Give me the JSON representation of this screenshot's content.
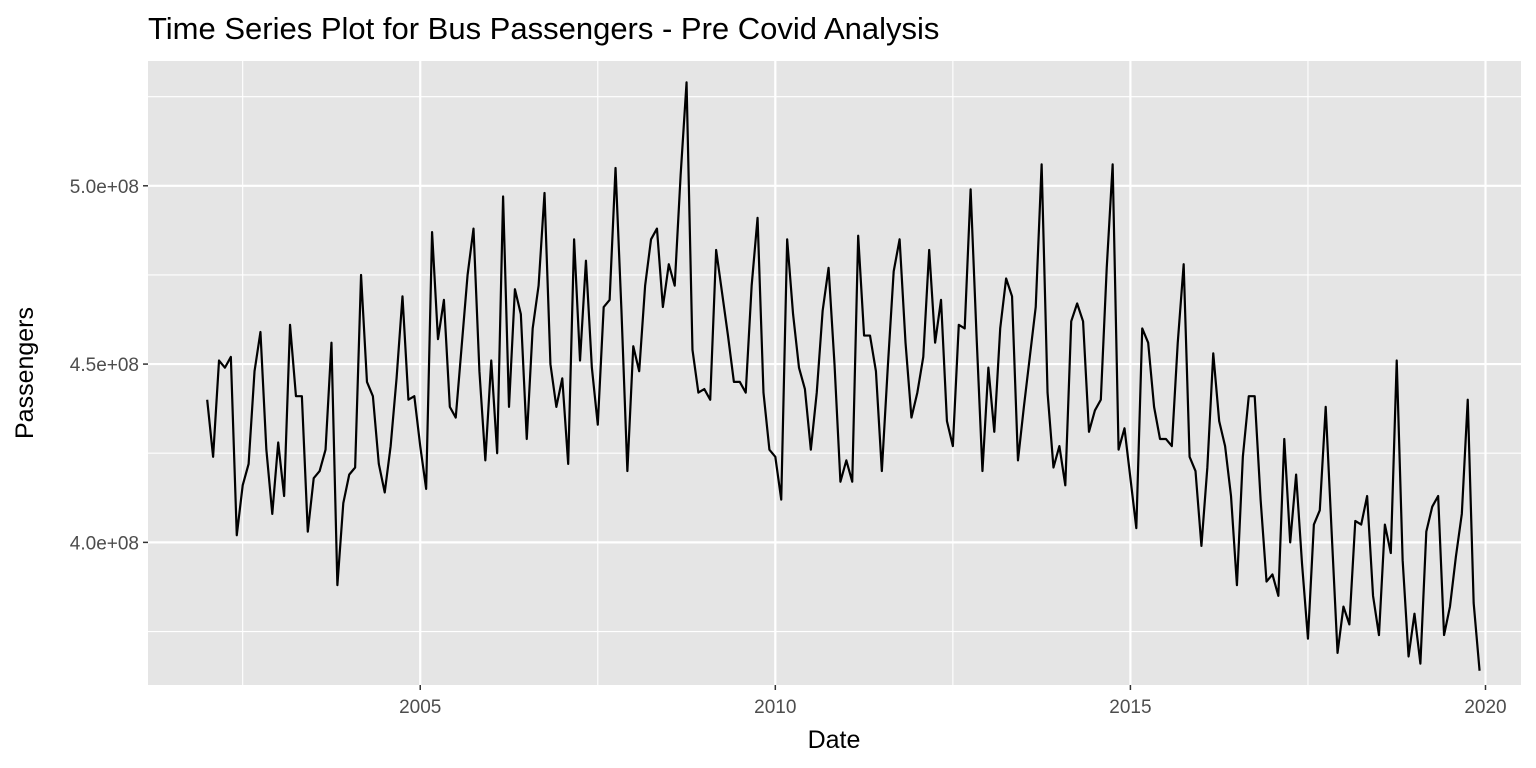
{
  "chart_data": {
    "type": "line",
    "title": "Time Series Plot for Bus Passengers - Pre Covid Analysis",
    "xlabel": "Date",
    "ylabel": "Passengers",
    "x_ticks": [
      "2005",
      "2010",
      "2015",
      "2020"
    ],
    "y_ticks": [
      "4.0e+08",
      "4.5e+08",
      "5.0e+08"
    ],
    "xlim": [
      "2001-03",
      "2020-07"
    ],
    "ylim": [
      360000000,
      535000000
    ],
    "grid": true,
    "colors": {
      "panel": "#e5e5e5",
      "grid": "#ffffff",
      "line": "#000000",
      "tick_label": "#4d4d4d"
    },
    "series": [
      {
        "x": [
          "2002-01",
          "2002-02",
          "2002-03",
          "2002-04",
          "2002-05",
          "2002-06",
          "2002-07",
          "2002-08",
          "2002-09",
          "2002-10",
          "2002-11",
          "2002-12",
          "2003-01",
          "2003-02",
          "2003-03",
          "2003-04",
          "2003-05",
          "2003-06",
          "2003-07",
          "2003-08",
          "2003-09",
          "2003-10",
          "2003-11",
          "2003-12",
          "2004-01",
          "2004-02",
          "2004-03",
          "2004-04",
          "2004-05",
          "2004-06",
          "2004-07",
          "2004-08",
          "2004-09",
          "2004-10",
          "2004-11",
          "2004-12",
          "2005-01",
          "2005-02",
          "2005-03",
          "2005-04",
          "2005-05",
          "2005-06",
          "2005-07",
          "2005-08",
          "2005-09",
          "2005-10",
          "2005-11",
          "2005-12",
          "2006-01",
          "2006-02",
          "2006-03",
          "2006-04",
          "2006-05",
          "2006-06",
          "2006-07",
          "2006-08",
          "2006-09",
          "2006-10",
          "2006-11",
          "2006-12",
          "2007-01",
          "2007-02",
          "2007-03",
          "2007-04",
          "2007-05",
          "2007-06",
          "2007-07",
          "2007-08",
          "2007-09",
          "2007-10",
          "2007-11",
          "2007-12",
          "2008-01",
          "2008-02",
          "2008-03",
          "2008-04",
          "2008-05",
          "2008-06",
          "2008-07",
          "2008-08",
          "2008-09",
          "2008-10",
          "2008-11",
          "2008-12",
          "2009-01",
          "2009-02",
          "2009-03",
          "2009-04",
          "2009-05",
          "2009-06",
          "2009-07",
          "2009-08",
          "2009-09",
          "2009-10",
          "2009-11",
          "2009-12",
          "2010-01",
          "2010-02",
          "2010-03",
          "2010-04",
          "2010-05",
          "2010-06",
          "2010-07",
          "2010-08",
          "2010-09",
          "2010-10",
          "2010-11",
          "2010-12",
          "2011-01",
          "2011-02",
          "2011-03",
          "2011-04",
          "2011-05",
          "2011-06",
          "2011-07",
          "2011-08",
          "2011-09",
          "2011-10",
          "2011-11",
          "2011-12",
          "2012-01",
          "2012-02",
          "2012-03",
          "2012-04",
          "2012-05",
          "2012-06",
          "2012-07",
          "2012-08",
          "2012-09",
          "2012-10",
          "2012-11",
          "2012-12",
          "2013-01",
          "2013-02",
          "2013-03",
          "2013-04",
          "2013-05",
          "2013-06",
          "2013-07",
          "2013-08",
          "2013-09",
          "2013-10",
          "2013-11",
          "2013-12",
          "2014-01",
          "2014-02",
          "2014-03",
          "2014-04",
          "2014-05",
          "2014-06",
          "2014-07",
          "2014-08",
          "2014-09",
          "2014-10",
          "2014-11",
          "2014-12",
          "2015-01",
          "2015-02",
          "2015-03",
          "2015-04",
          "2015-05",
          "2015-06",
          "2015-07",
          "2015-08",
          "2015-09",
          "2015-10",
          "2015-11",
          "2015-12",
          "2016-01",
          "2016-02",
          "2016-03",
          "2016-04",
          "2016-05",
          "2016-06",
          "2016-07",
          "2016-08",
          "2016-09",
          "2016-10",
          "2016-11",
          "2016-12",
          "2017-01",
          "2017-02",
          "2017-03",
          "2017-04",
          "2017-05",
          "2017-06",
          "2017-07",
          "2017-08",
          "2017-09",
          "2017-10",
          "2017-11",
          "2017-12",
          "2018-01",
          "2018-02",
          "2018-03",
          "2018-04",
          "2018-05",
          "2018-06",
          "2018-07",
          "2018-08",
          "2018-09",
          "2018-10",
          "2018-11",
          "2018-12",
          "2019-01",
          "2019-02",
          "2019-03",
          "2019-04",
          "2019-05",
          "2019-06",
          "2019-07",
          "2019-08",
          "2019-09",
          "2019-10",
          "2019-11",
          "2019-12"
        ],
        "y": [
          440000000,
          424000000,
          451000000,
          449000000,
          452000000,
          402000000,
          416000000,
          422000000,
          448000000,
          459000000,
          426000000,
          408000000,
          428000000,
          413000000,
          461000000,
          441000000,
          441000000,
          403000000,
          418000000,
          420000000,
          426000000,
          456000000,
          388000000,
          411000000,
          419000000,
          421000000,
          475000000,
          445000000,
          441000000,
          422000000,
          414000000,
          427000000,
          446000000,
          469000000,
          440000000,
          441000000,
          427000000,
          415000000,
          487000000,
          457000000,
          468000000,
          438000000,
          435000000,
          455000000,
          475000000,
          488000000,
          448000000,
          423000000,
          451000000,
          425000000,
          497000000,
          438000000,
          471000000,
          464000000,
          429000000,
          460000000,
          472000000,
          498000000,
          450000000,
          438000000,
          446000000,
          422000000,
          485000000,
          451000000,
          479000000,
          449000000,
          433000000,
          466000000,
          468000000,
          505000000,
          465000000,
          420000000,
          455000000,
          448000000,
          472000000,
          485000000,
          488000000,
          466000000,
          478000000,
          472000000,
          503000000,
          529000000,
          454000000,
          442000000,
          443000000,
          440000000,
          482000000,
          470000000,
          458000000,
          445000000,
          445000000,
          442000000,
          472000000,
          491000000,
          442000000,
          426000000,
          424000000,
          412000000,
          485000000,
          464000000,
          449000000,
          443000000,
          426000000,
          442000000,
          465000000,
          477000000,
          450000000,
          417000000,
          423000000,
          417000000,
          486000000,
          458000000,
          458000000,
          448000000,
          420000000,
          449000000,
          476000000,
          485000000,
          456000000,
          435000000,
          442000000,
          452000000,
          482000000,
          456000000,
          468000000,
          434000000,
          427000000,
          461000000,
          460000000,
          499000000,
          458000000,
          420000000,
          449000000,
          431000000,
          460000000,
          474000000,
          469000000,
          423000000,
          438000000,
          452000000,
          466000000,
          506000000,
          442000000,
          421000000,
          427000000,
          416000000,
          462000000,
          467000000,
          462000000,
          431000000,
          437000000,
          440000000,
          477000000,
          506000000,
          426000000,
          432000000,
          418000000,
          404000000,
          460000000,
          456000000,
          438000000,
          429000000,
          429000000,
          427000000,
          456000000,
          478000000,
          424000000,
          420000000,
          399000000,
          421000000,
          453000000,
          434000000,
          427000000,
          413000000,
          388000000,
          424000000,
          441000000,
          441000000,
          412000000,
          389000000,
          391000000,
          385000000,
          429000000,
          400000000,
          419000000,
          394000000,
          373000000,
          405000000,
          409000000,
          438000000,
          403000000,
          369000000,
          382000000,
          377000000,
          406000000,
          405000000,
          413000000,
          385000000,
          374000000,
          405000000,
          397000000,
          451000000,
          395000000,
          368000000,
          380000000,
          366000000,
          403000000,
          410000000,
          413000000,
          374000000,
          382000000,
          396000000,
          408000000,
          440000000,
          383000000,
          364000000
        ]
      }
    ]
  }
}
